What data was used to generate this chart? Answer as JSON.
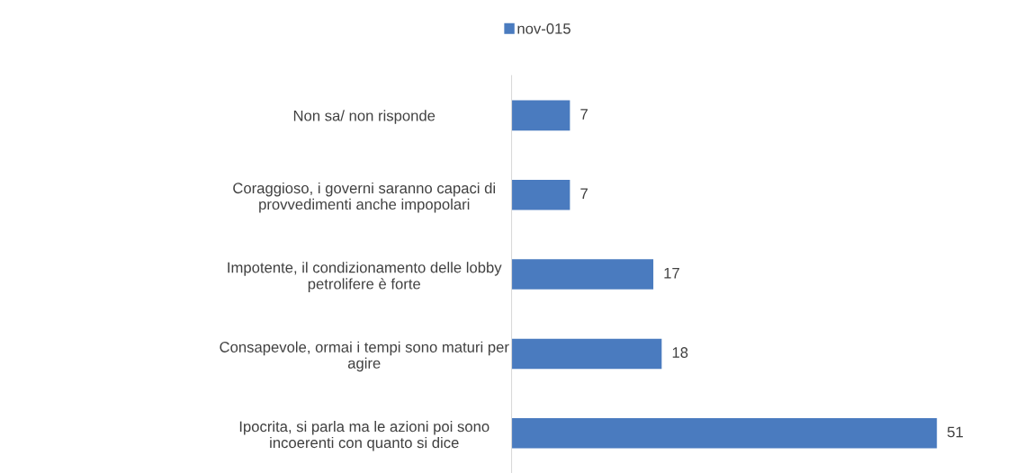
{
  "chart_data": {
    "type": "bar",
    "orientation": "horizontal",
    "categories": [
      "Non sa/ non risponde",
      "Coraggioso, i governi saranno capaci di\nprovvedimenti anche impopolari",
      "Impotente, il condizionamento delle lobby\npetrolifere è forte",
      "Consapevole, ormai i tempi sono maturi per\nagire",
      "Ipocrita, si parla ma le azioni poi sono\nincoerenti con quanto si dice"
    ],
    "series": [
      {
        "name": "nov-015",
        "color": "#4a7bbf",
        "values": [
          7,
          7,
          17,
          18,
          51
        ]
      }
    ],
    "data_labels": true,
    "legend": "top",
    "grid": false
  }
}
